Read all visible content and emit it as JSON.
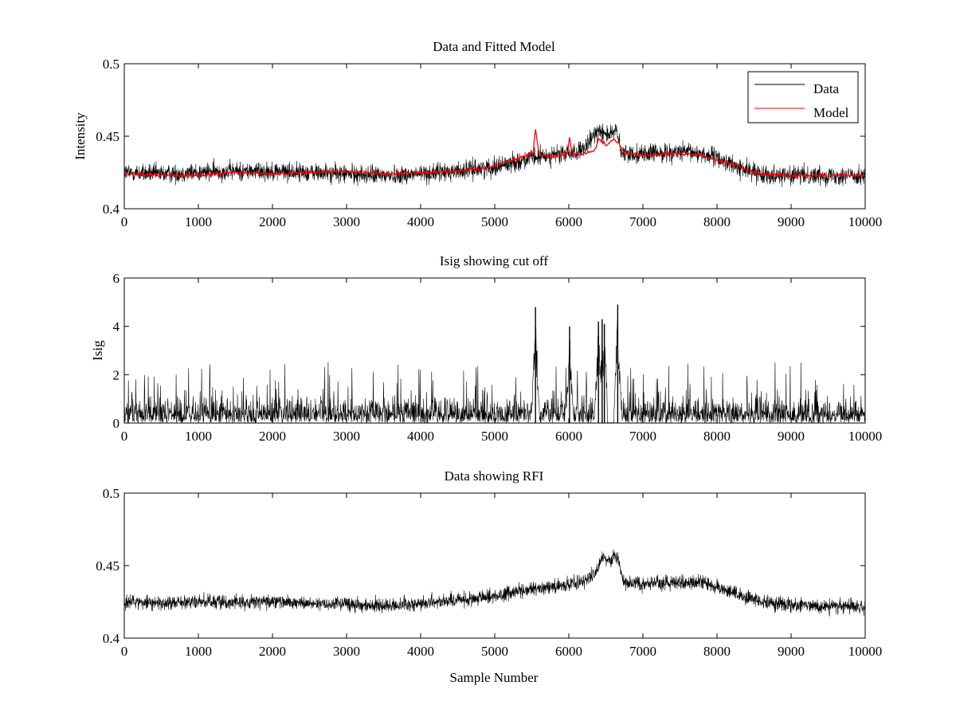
{
  "chart_data": [
    {
      "type": "line",
      "title": "Data and Fitted Model",
      "xlabel": "",
      "ylabel": "Intensity",
      "xlim": [
        0,
        10000
      ],
      "ylim": [
        0.4,
        0.5
      ],
      "x_ticks": [
        0,
        1000,
        2000,
        3000,
        4000,
        5000,
        6000,
        7000,
        8000,
        9000,
        10000
      ],
      "y_ticks": [
        0.4,
        0.45,
        0.5
      ],
      "x_tick_labels": [
        "0",
        "1000",
        "2000",
        "3000",
        "4000",
        "5000",
        "6000",
        "7000",
        "8000",
        "9000",
        "10000"
      ],
      "y_tick_labels": [
        "0.4",
        "0.45",
        "0.5"
      ],
      "legend_position": "top-right",
      "grid": false,
      "series": [
        {
          "name": "Data",
          "color": "#000000",
          "noise": 0.0045,
          "x": [
            0,
            500,
            1000,
            1500,
            2000,
            2500,
            3000,
            3500,
            4000,
            4500,
            5000,
            5500,
            5800,
            6000,
            6200,
            6400,
            6500,
            6600,
            6650,
            6700,
            7000,
            7500,
            7800,
            8000,
            8300,
            8600,
            9000,
            9500,
            10000
          ],
          "y": [
            0.425,
            0.424,
            0.425,
            0.426,
            0.426,
            0.425,
            0.424,
            0.423,
            0.424,
            0.426,
            0.429,
            0.435,
            0.437,
            0.438,
            0.44,
            0.455,
            0.452,
            0.451,
            0.455,
            0.438,
            0.438,
            0.439,
            0.438,
            0.435,
            0.428,
            0.424,
            0.423,
            0.423,
            0.423
          ]
        },
        {
          "name": "Model",
          "color": "#ff0000",
          "x": [
            0,
            500,
            1000,
            1500,
            2000,
            2500,
            3000,
            3500,
            4000,
            4500,
            4900,
            5000,
            5200,
            5400,
            5520,
            5550,
            5600,
            5800,
            5980,
            6010,
            6050,
            6200,
            6350,
            6400,
            6500,
            6600,
            6680,
            6750,
            7000,
            7500,
            7800,
            8000,
            8300,
            8350,
            8600,
            9000,
            9500,
            10000
          ],
          "y": [
            0.424,
            0.423,
            0.423,
            0.425,
            0.424,
            0.425,
            0.426,
            0.424,
            0.425,
            0.426,
            0.428,
            0.43,
            0.433,
            0.436,
            0.439,
            0.455,
            0.437,
            0.436,
            0.438,
            0.449,
            0.437,
            0.438,
            0.44,
            0.448,
            0.444,
            0.448,
            0.445,
            0.438,
            0.437,
            0.438,
            0.437,
            0.433,
            0.43,
            0.427,
            0.424,
            0.423,
            0.423,
            0.423
          ]
        }
      ]
    },
    {
      "type": "line",
      "title": "Isig showing cut off",
      "xlabel": "",
      "ylabel": "Isig",
      "xlim": [
        0,
        10000
      ],
      "ylim": [
        0,
        6
      ],
      "x_ticks": [
        0,
        1000,
        2000,
        3000,
        4000,
        5000,
        6000,
        7000,
        8000,
        9000,
        10000
      ],
      "y_ticks": [
        0,
        2,
        4,
        6
      ],
      "x_tick_labels": [
        "0",
        "1000",
        "2000",
        "3000",
        "4000",
        "5000",
        "6000",
        "7000",
        "8000",
        "9000",
        "10000"
      ],
      "y_tick_labels": [
        "0",
        "2",
        "4",
        "6"
      ],
      "grid": false,
      "series": [
        {
          "color": "#000000",
          "baseline_max": 2.1,
          "spikes": [
            {
              "x": 5550,
              "y": 4.8
            },
            {
              "x": 6010,
              "y": 4.0
            },
            {
              "x": 6400,
              "y": 4.2
            },
            {
              "x": 6450,
              "y": 4.3
            },
            {
              "x": 6480,
              "y": 4.1
            },
            {
              "x": 6660,
              "y": 4.9
            }
          ],
          "gaps": [
            [
              6520,
              6610
            ]
          ]
        }
      ]
    },
    {
      "type": "line",
      "title": "Data showing RFI",
      "xlabel": "Sample Number",
      "ylabel": "",
      "xlim": [
        0,
        10000
      ],
      "ylim": [
        0.4,
        0.5
      ],
      "x_ticks": [
        0,
        1000,
        2000,
        3000,
        4000,
        5000,
        6000,
        7000,
        8000,
        9000,
        10000
      ],
      "y_ticks": [
        0.4,
        0.45,
        0.5
      ],
      "x_tick_labels": [
        "0",
        "1000",
        "2000",
        "3000",
        "4000",
        "5000",
        "6000",
        "7000",
        "8000",
        "9000",
        "10000"
      ],
      "y_tick_labels": [
        "0.4",
        "0.45",
        "0.5"
      ],
      "grid": false,
      "series": [
        {
          "color": "#000000",
          "noise": 0.0035,
          "x": [
            0,
            500,
            1000,
            1500,
            2000,
            2500,
            3000,
            3500,
            4000,
            4500,
            5000,
            5500,
            5800,
            6000,
            6200,
            6350,
            6450,
            6550,
            6650,
            6750,
            7000,
            7500,
            7800,
            8000,
            8300,
            8600,
            9000,
            9500,
            10000
          ],
          "y": [
            0.425,
            0.424,
            0.425,
            0.425,
            0.425,
            0.424,
            0.424,
            0.422,
            0.424,
            0.426,
            0.429,
            0.434,
            0.436,
            0.437,
            0.439,
            0.445,
            0.456,
            0.452,
            0.456,
            0.438,
            0.438,
            0.438,
            0.439,
            0.435,
            0.43,
            0.425,
            0.423,
            0.422,
            0.421
          ]
        }
      ]
    }
  ]
}
